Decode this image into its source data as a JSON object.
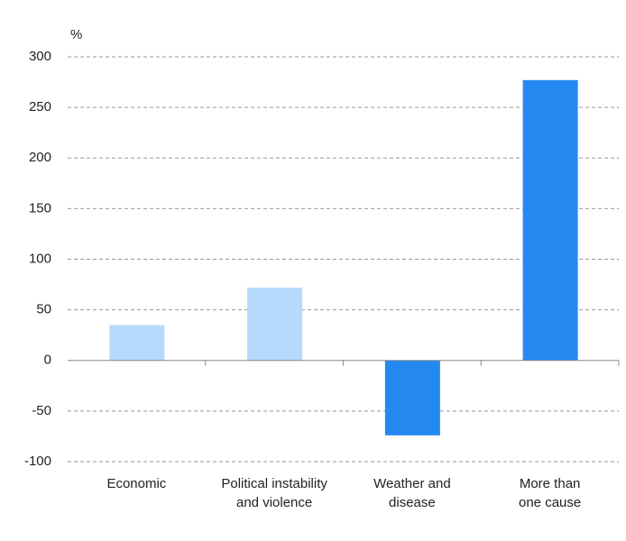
{
  "chart_data": {
    "type": "bar",
    "y_label": "%",
    "categories": [
      [
        "Economic"
      ],
      [
        "Political instability",
        "and violence"
      ],
      [
        "Weather and",
        "disease"
      ],
      [
        "More than",
        "one cause"
      ]
    ],
    "values": [
      35,
      72,
      -74,
      277
    ],
    "colors": [
      "#b5dafc",
      "#b5dafc",
      "#2389f1",
      "#2389f1"
    ],
    "ylim": [
      -100,
      300
    ],
    "yticks": [
      -100,
      -50,
      0,
      50,
      100,
      150,
      200,
      250,
      300
    ],
    "grid": true
  }
}
